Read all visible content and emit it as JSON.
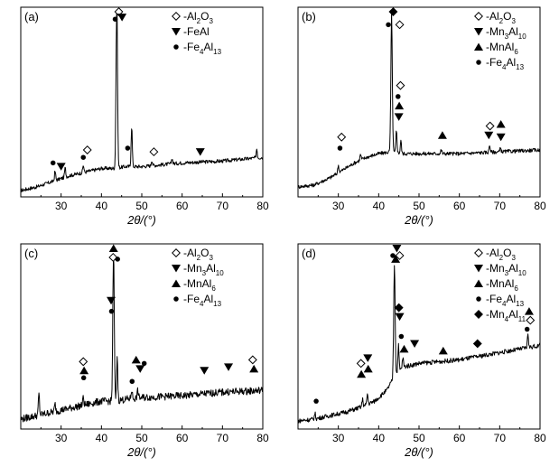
{
  "chart_data": [
    {
      "type": "line",
      "panel": "(a)",
      "xlabel": "2θ/(°)",
      "ylabel": "",
      "xlim": [
        20,
        80
      ],
      "xticks": [
        "30",
        "40",
        "50",
        "60",
        "70",
        "80"
      ],
      "legend": [
        {
          "symbol": "diamond-open",
          "label": "-Al2O3",
          "name": "-Al",
          "sub1": "2",
          "mid": "O",
          "sub2": "3"
        },
        {
          "symbol": "tri-down",
          "label": "-FeAl",
          "name": "-FeAl",
          "sub1": "",
          "mid": "",
          "sub2": ""
        },
        {
          "symbol": "circle",
          "label": "-Fe4Al13",
          "name": "-Fe",
          "sub1": "4",
          "mid": "Al",
          "sub2": "13"
        }
      ],
      "base": [
        [
          20,
          0.02
        ],
        [
          24,
          0.04
        ],
        [
          28,
          0.07
        ],
        [
          32,
          0.1
        ],
        [
          36,
          0.12
        ],
        [
          40,
          0.14
        ],
        [
          43,
          0.14
        ],
        [
          46,
          0.15
        ],
        [
          50,
          0.15
        ],
        [
          60,
          0.17
        ],
        [
          70,
          0.18
        ],
        [
          80,
          0.2
        ]
      ],
      "noise": 0.02,
      "peaks": [
        [
          28.5,
          0.05
        ],
        [
          31.0,
          0.05
        ],
        [
          35.5,
          0.04
        ],
        [
          43.8,
          0.94
        ],
        [
          47.5,
          0.22
        ],
        [
          52.5,
          0.03
        ],
        [
          57.5,
          0.03
        ],
        [
          78.5,
          0.05
        ]
      ],
      "markers": [
        {
          "symbol": "diamond-open",
          "x": 44.3,
          "y": 0.99
        },
        {
          "symbol": "tri-down",
          "x": 45.1,
          "y": 0.96
        },
        {
          "symbol": "circle",
          "x": 43.4,
          "y": 0.95
        },
        {
          "symbol": "circle",
          "x": 28.0,
          "y": 0.17
        },
        {
          "symbol": "tri-down",
          "x": 30.0,
          "y": 0.15
        },
        {
          "symbol": "circle",
          "x": 35.5,
          "y": 0.2
        },
        {
          "symbol": "diamond-open",
          "x": 36.5,
          "y": 0.24
        },
        {
          "symbol": "circle",
          "x": 46.5,
          "y": 0.25
        },
        {
          "symbol": "diamond-open",
          "x": 53.0,
          "y": 0.23
        },
        {
          "symbol": "tri-down",
          "x": 64.5,
          "y": 0.23
        }
      ]
    },
    {
      "type": "line",
      "panel": "(b)",
      "xlabel": "2θ/(°)",
      "ylabel": "",
      "xlim": [
        20,
        80
      ],
      "xticks": [
        "30",
        "40",
        "50",
        "60",
        "70",
        "80"
      ],
      "legend": [
        {
          "symbol": "diamond-open",
          "label": "-Al2O3",
          "name": "-Al",
          "sub1": "2",
          "mid": "O",
          "sub2": "3"
        },
        {
          "symbol": "tri-down",
          "label": "-Mn3Al10",
          "name": "-Mn",
          "sub1": "3",
          "mid": "Al",
          "sub2": "10"
        },
        {
          "symbol": "tri-up",
          "label": "-MnAl6",
          "name": "-MnAl",
          "sub1": "6",
          "mid": "",
          "sub2": ""
        },
        {
          "symbol": "circle",
          "label": "-Fe4Al13",
          "name": "-Fe",
          "sub1": "4",
          "mid": "Al",
          "sub2": "13"
        }
      ],
      "base": [
        [
          20,
          0.04
        ],
        [
          24,
          0.05
        ],
        [
          28,
          0.09
        ],
        [
          31,
          0.13
        ],
        [
          34,
          0.17
        ],
        [
          37,
          0.2
        ],
        [
          40,
          0.22
        ],
        [
          43,
          0.23
        ],
        [
          46,
          0.22
        ],
        [
          50,
          0.22
        ],
        [
          60,
          0.22
        ],
        [
          70,
          0.23
        ],
        [
          80,
          0.24
        ]
      ],
      "noise": 0.02,
      "peaks": [
        [
          30.0,
          0.04
        ],
        [
          35.5,
          0.03
        ],
        [
          43.2,
          0.75
        ],
        [
          44.4,
          0.12
        ],
        [
          45.5,
          0.07
        ],
        [
          55.5,
          0.02
        ],
        [
          67.5,
          0.04
        ],
        [
          70.2,
          0.02
        ]
      ],
      "markers": [
        {
          "symbol": "diamond-solid",
          "x": 43.6,
          "y": 0.99
        },
        {
          "symbol": "circle",
          "x": 42.4,
          "y": 0.92
        },
        {
          "symbol": "diamond-open",
          "x": 45.2,
          "y": 0.92
        },
        {
          "symbol": "diamond-open",
          "x": 30.8,
          "y": 0.31
        },
        {
          "symbol": "circle",
          "x": 30.4,
          "y": 0.25
        },
        {
          "symbol": "diamond-open",
          "x": 45.4,
          "y": 0.59
        },
        {
          "symbol": "circle",
          "x": 44.8,
          "y": 0.53
        },
        {
          "symbol": "tri-up",
          "x": 45.1,
          "y": 0.48
        },
        {
          "symbol": "tri-down",
          "x": 45.0,
          "y": 0.42
        },
        {
          "symbol": "tri-up",
          "x": 55.8,
          "y": 0.32
        },
        {
          "symbol": "diamond-open",
          "x": 67.6,
          "y": 0.37
        },
        {
          "symbol": "tri-down",
          "x": 67.3,
          "y": 0.32
        },
        {
          "symbol": "tri-up",
          "x": 70.3,
          "y": 0.38
        },
        {
          "symbol": "tri-down",
          "x": 70.3,
          "y": 0.31
        }
      ]
    },
    {
      "type": "line",
      "panel": "(c)",
      "xlabel": "2θ/(°)",
      "ylabel": "",
      "xlim": [
        20,
        80
      ],
      "xticks": [
        "30",
        "40",
        "50",
        "60",
        "70",
        "80"
      ],
      "legend": [
        {
          "symbol": "diamond-open",
          "label": "-Al2O3",
          "name": "-Al",
          "sub1": "2",
          "mid": "O",
          "sub2": "3"
        },
        {
          "symbol": "tri-down",
          "label": "-Mn3Al10",
          "name": "-Mn",
          "sub1": "3",
          "mid": "Al",
          "sub2": "10"
        },
        {
          "symbol": "tri-up",
          "label": "-MnAl6",
          "name": "-MnAl",
          "sub1": "6",
          "mid": "",
          "sub2": ""
        },
        {
          "symbol": "circle",
          "label": "-Fe4Al13",
          "name": "-Fe",
          "sub1": "4",
          "mid": "Al",
          "sub2": "13"
        }
      ],
      "base": [
        [
          20,
          0.04
        ],
        [
          24,
          0.06
        ],
        [
          28,
          0.08
        ],
        [
          32,
          0.1
        ],
        [
          36,
          0.12
        ],
        [
          40,
          0.14
        ],
        [
          43,
          0.14
        ],
        [
          46,
          0.15
        ],
        [
          50,
          0.16
        ],
        [
          60,
          0.17
        ],
        [
          70,
          0.19
        ],
        [
          80,
          0.2
        ]
      ],
      "noise": 0.04,
      "peaks": [
        [
          24.5,
          0.12
        ],
        [
          28.5,
          0.04
        ],
        [
          35.5,
          0.04
        ],
        [
          43.0,
          0.82
        ],
        [
          43.9,
          0.25
        ],
        [
          47.5,
          0.05
        ],
        [
          49.0,
          0.04
        ]
      ],
      "markers": [
        {
          "symbol": "tri-up",
          "x": 43.0,
          "y": 0.99
        },
        {
          "symbol": "diamond-open",
          "x": 42.9,
          "y": 0.94
        },
        {
          "symbol": "circle",
          "x": 44.0,
          "y": 0.93
        },
        {
          "symbol": "tri-down",
          "x": 42.4,
          "y": 0.7
        },
        {
          "symbol": "circle",
          "x": 42.5,
          "y": 0.64
        },
        {
          "symbol": "diamond-open",
          "x": 35.5,
          "y": 0.36
        },
        {
          "symbol": "tri-up",
          "x": 35.7,
          "y": 0.31
        },
        {
          "symbol": "circle",
          "x": 35.6,
          "y": 0.27
        },
        {
          "symbol": "circle",
          "x": 47.6,
          "y": 0.25
        },
        {
          "symbol": "tri-up",
          "x": 48.6,
          "y": 0.37
        },
        {
          "symbol": "tri-down",
          "x": 49.6,
          "y": 0.32
        },
        {
          "symbol": "circle",
          "x": 50.6,
          "y": 0.35
        },
        {
          "symbol": "tri-down",
          "x": 65.5,
          "y": 0.31
        },
        {
          "symbol": "tri-down",
          "x": 71.5,
          "y": 0.33
        },
        {
          "symbol": "diamond-open",
          "x": 77.5,
          "y": 0.37
        },
        {
          "symbol": "tri-up",
          "x": 77.8,
          "y": 0.32
        }
      ]
    },
    {
      "type": "line",
      "panel": "(d)",
      "xlabel": "2θ/(°)",
      "ylabel": "",
      "xlim": [
        20,
        80
      ],
      "xticks": [
        "30",
        "40",
        "50",
        "60",
        "70",
        "80"
      ],
      "legend": [
        {
          "symbol": "diamond-open",
          "label": "-Al2O3",
          "name": "-Al",
          "sub1": "2",
          "mid": "O",
          "sub2": "3"
        },
        {
          "symbol": "tri-down",
          "label": "-Mn3Al10",
          "name": "-Mn",
          "sub1": "3",
          "mid": "Al",
          "sub2": "10"
        },
        {
          "symbol": "tri-up",
          "label": "-MnAl6",
          "name": "-MnAl",
          "sub1": "6",
          "mid": "",
          "sub2": ""
        },
        {
          "symbol": "circle",
          "label": "-Fe4Al13",
          "name": "-Fe",
          "sub1": "4",
          "mid": "Al",
          "sub2": "13"
        },
        {
          "symbol": "diamond-solid",
          "label": "-Mn4Al11",
          "name": "-Mn",
          "sub1": "4",
          "mid": "Al",
          "sub2": "11"
        }
      ],
      "base": [
        [
          20,
          0.03
        ],
        [
          24,
          0.04
        ],
        [
          28,
          0.06
        ],
        [
          32,
          0.08
        ],
        [
          36,
          0.11
        ],
        [
          39,
          0.14
        ],
        [
          42,
          0.2
        ],
        [
          44,
          0.28
        ],
        [
          46,
          0.33
        ],
        [
          50,
          0.35
        ],
        [
          60,
          0.37
        ],
        [
          70,
          0.41
        ],
        [
          80,
          0.45
        ]
      ],
      "noise": 0.025,
      "peaks": [
        [
          24.2,
          0.03
        ],
        [
          36.0,
          0.04
        ],
        [
          37.2,
          0.06
        ],
        [
          43.9,
          0.63
        ],
        [
          44.9,
          0.15
        ],
        [
          46.0,
          0.05
        ],
        [
          77.0,
          0.08
        ]
      ],
      "markers": [
        {
          "symbol": "tri-down",
          "x": 44.5,
          "y": 0.99
        },
        {
          "symbol": "diamond-open",
          "x": 45.2,
          "y": 0.95
        },
        {
          "symbol": "circle",
          "x": 43.5,
          "y": 0.95
        },
        {
          "symbol": "tri-up",
          "x": 44.2,
          "y": 0.93
        },
        {
          "symbol": "diamond-solid",
          "x": 45.0,
          "y": 0.66
        },
        {
          "symbol": "tri-down",
          "x": 45.2,
          "y": 0.61
        },
        {
          "symbol": "circle",
          "x": 45.6,
          "y": 0.5
        },
        {
          "symbol": "tri-up",
          "x": 46.3,
          "y": 0.43
        },
        {
          "symbol": "tri-down",
          "x": 48.9,
          "y": 0.46
        },
        {
          "symbol": "tri-up",
          "x": 56.0,
          "y": 0.42
        },
        {
          "symbol": "diamond-solid",
          "x": 64.5,
          "y": 0.46
        },
        {
          "symbol": "diamond-open",
          "x": 35.6,
          "y": 0.35
        },
        {
          "symbol": "tri-down",
          "x": 37.3,
          "y": 0.38
        },
        {
          "symbol": "tri-up",
          "x": 35.7,
          "y": 0.29
        },
        {
          "symbol": "tri-up",
          "x": 37.4,
          "y": 0.32
        },
        {
          "symbol": "circle",
          "x": 24.5,
          "y": 0.14
        },
        {
          "symbol": "tri-up",
          "x": 77.3,
          "y": 0.64
        },
        {
          "symbol": "diamond-open",
          "x": 77.6,
          "y": 0.59
        },
        {
          "symbol": "circle",
          "x": 76.8,
          "y": 0.54
        }
      ]
    }
  ]
}
